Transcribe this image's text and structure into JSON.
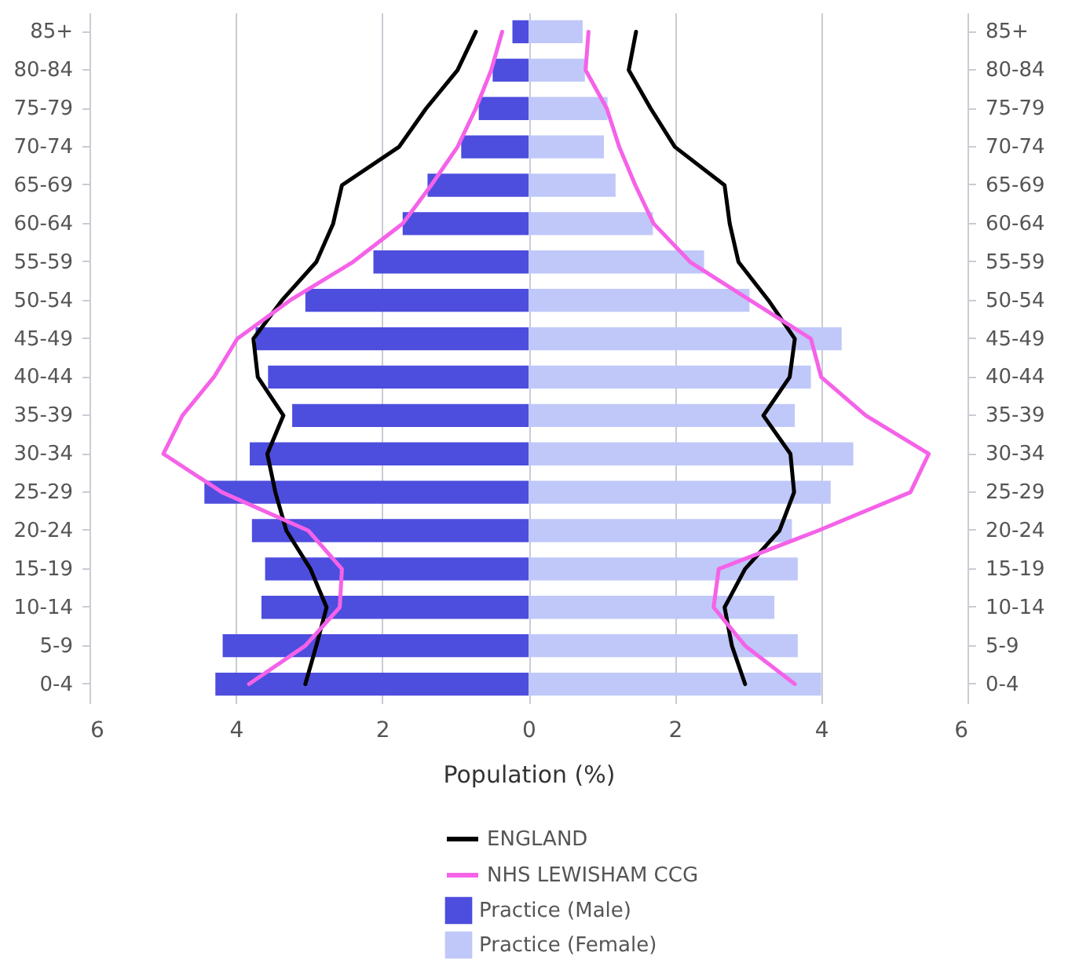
{
  "chart_data": {
    "type": "bar",
    "orientation": "horizontal",
    "xlabel": "Population (%)",
    "categories": [
      "85+",
      "80-84",
      "75-79",
      "70-74",
      "65-69",
      "60-64",
      "55-59",
      "50-54",
      "45-49",
      "40-44",
      "35-39",
      "30-34",
      "25-29",
      "20-24",
      "15-19",
      "10-14",
      "5-9",
      "0-4"
    ],
    "series": [
      {
        "name": "ENGLAND",
        "type": "line",
        "color": "#000000",
        "values": [
          1.47,
          1.37,
          1.67,
          2.0,
          2.68,
          2.75,
          2.87,
          3.28,
          3.64,
          3.57,
          3.21,
          3.58,
          3.63,
          3.43,
          2.96,
          2.68,
          2.78,
          2.96
        ]
      },
      {
        "type": "line",
        "color": "#000000",
        "values": [
          -0.72,
          -0.97,
          -1.4,
          -1.77,
          -2.55,
          -2.67,
          -2.9,
          -3.37,
          -3.76,
          -3.7,
          -3.35,
          -3.57,
          -3.46,
          -3.31,
          -2.98,
          -2.76,
          -2.9,
          -3.05
        ]
      },
      {
        "name": "NHS LEWISHAM CCG",
        "type": "line",
        "color": "#f562e8",
        "values": [
          0.82,
          0.78,
          1.07,
          1.24,
          1.46,
          1.71,
          2.21,
          3.03,
          3.86,
          4.0,
          4.61,
          5.47,
          5.22,
          3.96,
          2.6,
          2.53,
          2.96,
          3.64
        ]
      },
      {
        "type": "line",
        "color": "#f562e8",
        "values": [
          -0.36,
          -0.51,
          -0.72,
          -0.97,
          -1.33,
          -1.72,
          -2.4,
          -3.26,
          -3.98,
          -4.3,
          -4.73,
          -4.99,
          -4.19,
          -3.01,
          -2.55,
          -2.58,
          -3.05,
          -3.82
        ]
      },
      {
        "name": "Practice (Male)",
        "color": "#4d4dde",
        "values": [
          -0.22,
          -0.49,
          -0.68,
          -0.92,
          -1.38,
          -1.72,
          -2.12,
          -3.05,
          -3.73,
          -3.56,
          -3.23,
          -3.81,
          -4.43,
          -3.78,
          -3.6,
          -3.65,
          -4.18,
          -4.28
        ]
      },
      {
        "name": "Practice (Female)",
        "color": "#bfc8f8",
        "values": [
          0.74,
          0.77,
          1.08,
          1.03,
          1.19,
          1.7,
          2.4,
          3.02,
          4.28,
          3.86,
          3.64,
          4.44,
          4.13,
          3.6,
          3.68,
          3.36,
          3.68,
          4.0
        ]
      }
    ],
    "xlim": [
      -6,
      6
    ],
    "xticks": [
      {
        "value": -6,
        "label": "6"
      },
      {
        "value": -4,
        "label": "4"
      },
      {
        "value": -2,
        "label": "2"
      },
      0,
      2,
      4,
      6
    ],
    "grid": "x",
    "legend": "bottom",
    "stacked": true
  }
}
